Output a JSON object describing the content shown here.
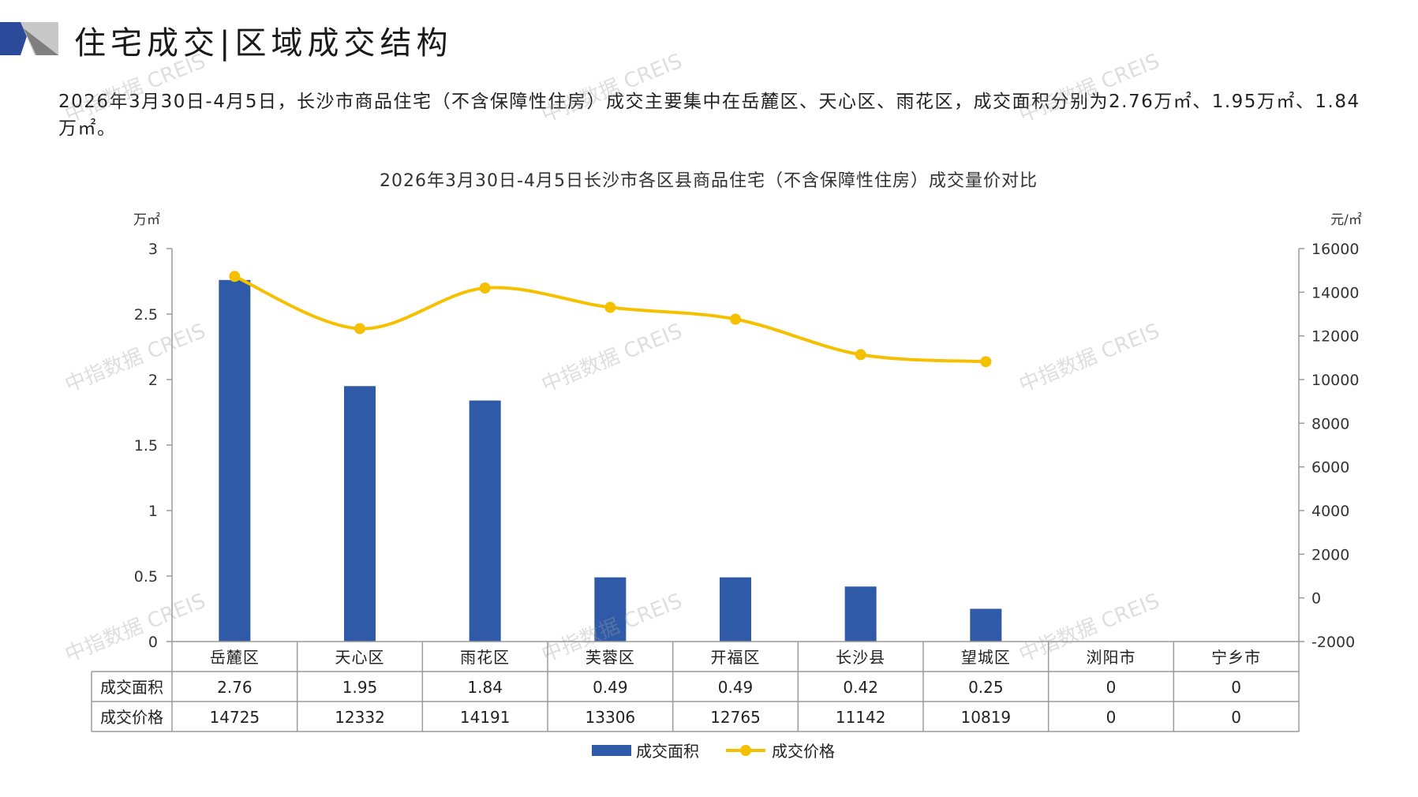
{
  "header": {
    "title": "住宅成交|区域成交结构"
  },
  "summary_text": "2026年3月30日-4月5日，长沙市商品住宅（不含保障性住房）成交主要集中在岳麓区、天心区、雨花区，成交面积分别为2.76万㎡、1.95万㎡、1.84万㎡。",
  "watermark_text": "中指数据 CREIS",
  "colors": {
    "bar": "#2f5aa8",
    "line": "#f5c000",
    "accent_dark": "#2b4a9a",
    "accent_light": "#c8c8c8"
  },
  "chart_data": {
    "type": "bar",
    "title": "2026年3月30日-4月5日长沙市各区县商品住宅（不含保障性住房）成交量价对比",
    "categories": [
      "岳麓区",
      "天心区",
      "雨花区",
      "芙蓉区",
      "开福区",
      "长沙县",
      "望城区",
      "浏阳市",
      "宁乡市"
    ],
    "y_left": {
      "unit": "万㎡",
      "min": 0,
      "max": 3,
      "ticks": [
        "0",
        "0.5",
        "1",
        "1.5",
        "2",
        "2.5",
        "3"
      ]
    },
    "y_right": {
      "unit": "元/㎡",
      "min": -2000,
      "max": 16000,
      "ticks": [
        "-2000",
        "0",
        "2000",
        "4000",
        "6000",
        "8000",
        "10000",
        "12000",
        "14000",
        "16000"
      ]
    },
    "series": [
      {
        "name": "成交面积",
        "kind": "bar",
        "axis": "left",
        "values": [
          2.76,
          1.95,
          1.84,
          0.49,
          0.49,
          0.42,
          0.25,
          0,
          0
        ],
        "labels": [
          "2.76",
          "1.95",
          "1.84",
          "0.49",
          "0.49",
          "0.42",
          "0.25",
          "0",
          "0"
        ]
      },
      {
        "name": "成交价格",
        "kind": "line",
        "axis": "right",
        "values": [
          14725,
          12332,
          14191,
          13306,
          12765,
          11142,
          10819,
          0,
          0
        ],
        "labels": [
          "14725",
          "12332",
          "14191",
          "13306",
          "12765",
          "11142",
          "10819",
          "0",
          "0"
        ],
        "plotted_points": 7
      }
    ],
    "legend_position": "bottom",
    "grid": false,
    "data_table": true
  }
}
